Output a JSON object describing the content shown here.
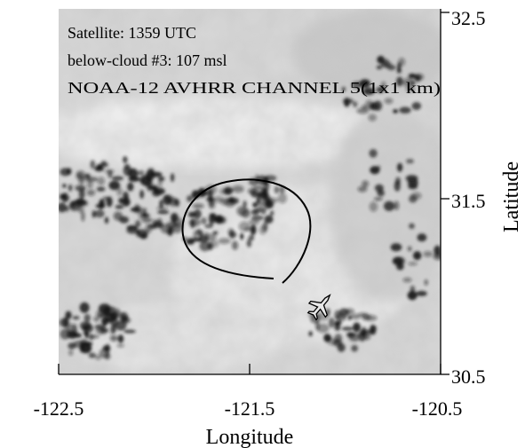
{
  "annotations": {
    "line1": "Satellite: 1359 UTC",
    "line2": "below-cloud #3: 107 msl",
    "line3": "NOAA-12 AVHRR CHANNEL 5(1x1 km)"
  },
  "axes": {
    "xlabel": "Longitude",
    "ylabel": "Latitude",
    "xticks": [
      "-122.5",
      "-121.5",
      "-120.5"
    ],
    "yticks": [
      "32.5",
      "31.5",
      "30.5"
    ],
    "xlim": [
      -122.5,
      -120.5
    ],
    "ylim": [
      30.5,
      32.5
    ]
  },
  "map": {
    "type": "satellite-imagery",
    "colormap": "grayscale",
    "flight_track_shape": "loop",
    "aircraft_icon": "airplane-icon",
    "colors": {
      "background": "#d8d8d8",
      "clouds": "#1a1a1a",
      "track": "#000000"
    }
  }
}
